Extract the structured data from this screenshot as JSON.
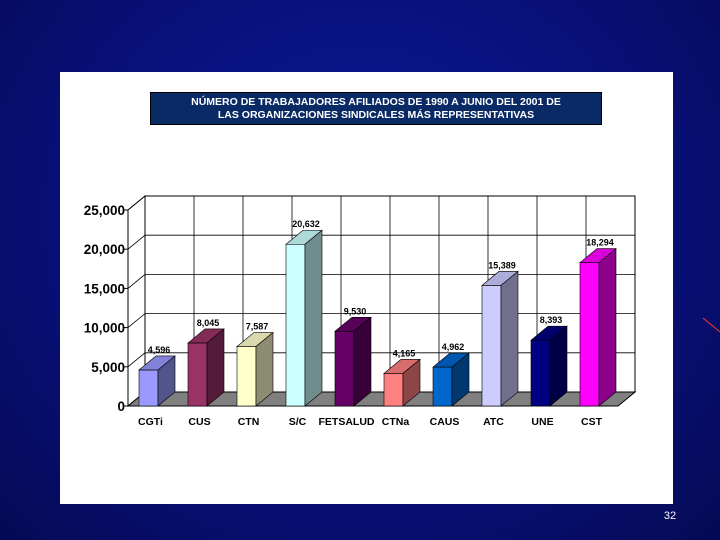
{
  "slide": {
    "page_number": "32",
    "background_color": "#08107a",
    "panel_color": "#ffffff"
  },
  "chart_data": {
    "type": "bar",
    "title": "NÚMERO DE TRABAJADORES AFILIADOS DE 1990 A JUNIO DEL 2001 DE LAS ORGANIZACIONES SINDICALES MÁS REPRESENTATIVAS",
    "title_lines": [
      "NÚMERO DE TRABAJADORES AFILIADOS DE 1990 A JUNIO DEL 2001 DE",
      "LAS ORGANIZACIONES SINDICALES MÁS REPRESENTATIVAS"
    ],
    "categories": [
      "CGTi",
      "CUS",
      "CTN",
      "S/C",
      "FETSALUD",
      "CTNa",
      "CAUS",
      "ATC",
      "UNE",
      "CST"
    ],
    "values": [
      4596,
      8045,
      7587,
      20632,
      9530,
      4165,
      4962,
      15389,
      8393,
      18294
    ],
    "data_labels": [
      "4,596",
      "8,045",
      "7,587",
      "20,632",
      "9,530",
      "4,165",
      "4,962",
      "15,389",
      "8,393",
      "18,294"
    ],
    "colors": [
      "#9999ff",
      "#993366",
      "#ffffcc",
      "#ccffff",
      "#660066",
      "#ff8080",
      "#0066cc",
      "#ccccff",
      "#000080",
      "#ff00ff"
    ],
    "ylim": [
      0,
      25000
    ],
    "yticks": [
      0,
      5000,
      10000,
      15000,
      20000,
      25000
    ],
    "ytick_labels": [
      "0",
      "5,000",
      "10,000",
      "15,000",
      "20,000",
      "25,000"
    ],
    "xlabel": "",
    "ylabel": "",
    "grid": true,
    "style": "3d"
  }
}
